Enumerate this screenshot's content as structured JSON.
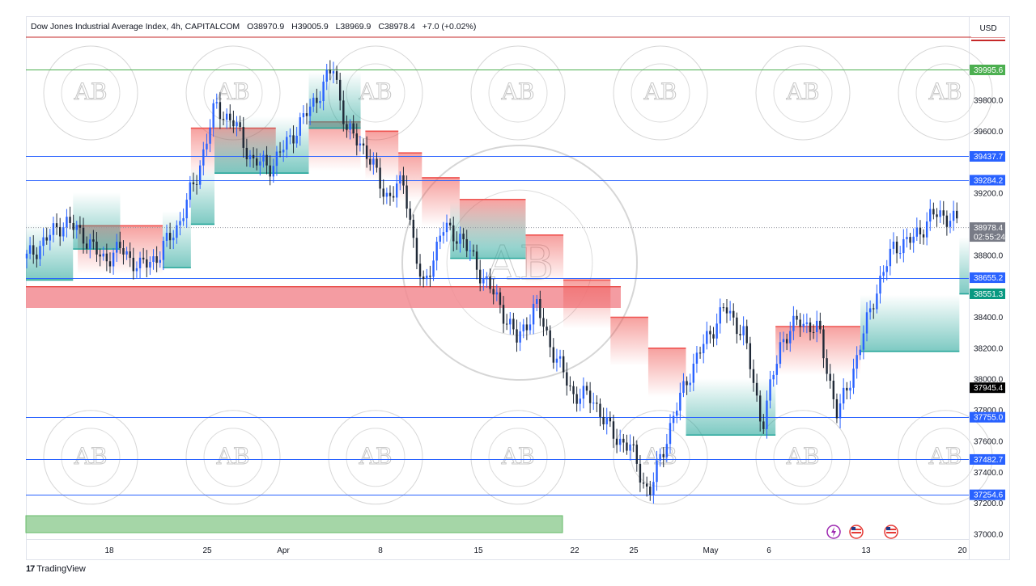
{
  "header": {
    "symbol": "Dow Jones Industrial Average Index, 4h, CAPITALCOM",
    "open": "O38970.9",
    "high": "H39005.9",
    "low": "L38969.9",
    "close": "C38978.4",
    "change": "+7.0 (+0.02%)"
  },
  "currency": "USD",
  "footer_brand": "TradingView",
  "watermark": {
    "text": "AB",
    "ring_text": "ARABIAN BUSINESS ACADEMY"
  },
  "colors": {
    "up": "#2962ff",
    "down": "#1f2937",
    "supertrend_up": "#26a69a",
    "supertrend_down": "#ef5350",
    "resistance_zone": "#f28b92",
    "support_zone": "#a5d6a7",
    "hline_blue": "#2962ff",
    "hline_green": "#4caf50",
    "hline_red": "#c62828"
  },
  "chart_data": {
    "type": "candlestick",
    "title": "Dow Jones Industrial Average Index, 4h, CAPITALCOM",
    "y_axis": {
      "ticks": [
        "39800.0",
        "39600.0",
        "39200.0",
        "38800.0",
        "38400.0",
        "38200.0",
        "38000.0",
        "37800.0",
        "37600.0",
        "37400.0",
        "37200.0",
        "37000.0"
      ],
      "range": [
        36900,
        40150
      ]
    },
    "x_axis": {
      "ticks": [
        "18",
        "25",
        "Apr",
        "8",
        "15",
        "22",
        "25",
        "May",
        "6",
        "13",
        "20"
      ]
    },
    "price_levels": [
      {
        "value": 39995.6,
        "label": "39995.6",
        "color": "#4caf50"
      },
      {
        "value": 39437.7,
        "label": "39437.7",
        "color": "#2962ff"
      },
      {
        "value": 39284.2,
        "label": "39284.2",
        "color": "#2962ff"
      },
      {
        "value": 38655.2,
        "label": "38655.2",
        "color": "#2962ff"
      },
      {
        "value": 37755.0,
        "label": "37755.0",
        "color": "#2962ff"
      },
      {
        "value": 37482.7,
        "label": "37482.7",
        "color": "#2962ff"
      },
      {
        "value": 37254.6,
        "label": "37254.6",
        "color": "#2962ff"
      }
    ],
    "price_tags": [
      {
        "value": 38978.4,
        "label": "38978.4",
        "sub": "02:55:24",
        "color": "#787b86"
      },
      {
        "value": 38551.3,
        "label": "38551.3",
        "color": "#089981"
      },
      {
        "value": 37945.4,
        "label": "37945.4",
        "color": "#000000"
      }
    ],
    "zones": [
      {
        "name": "resistance-zone",
        "from": 38460,
        "to": 38600,
        "x_start": "18-",
        "x_end": "25",
        "color": "#f28b92"
      },
      {
        "name": "support-zone",
        "from": 36910,
        "to": 37010,
        "x_start": "18-",
        "x_end": "22-",
        "color": "#a5d6a7"
      }
    ],
    "supertrend": {
      "down_segments": [
        {
          "from": 0.055,
          "to": 0.145,
          "value": 38990
        },
        {
          "from": 0.175,
          "to": 0.265,
          "value": 39620
        },
        {
          "from": 0.3,
          "to": 0.355,
          "value": 39660
        },
        {
          "from": 0.36,
          "to": 0.395,
          "value": 39600
        },
        {
          "from": 0.395,
          "to": 0.42,
          "value": 39460
        },
        {
          "from": 0.42,
          "to": 0.46,
          "value": 39300
        },
        {
          "from": 0.46,
          "to": 0.53,
          "value": 39160
        },
        {
          "from": 0.53,
          "to": 0.57,
          "value": 38930
        },
        {
          "from": 0.57,
          "to": 0.62,
          "value": 38640
        },
        {
          "from": 0.62,
          "to": 0.66,
          "value": 38400
        },
        {
          "from": 0.66,
          "to": 0.7,
          "value": 38200
        },
        {
          "from": 0.795,
          "to": 0.885,
          "value": 38340
        }
      ],
      "up_segments": [
        {
          "from": 0.0,
          "to": 0.05,
          "value": 38640
        },
        {
          "from": 0.05,
          "to": 0.1,
          "value": 38840
        },
        {
          "from": 0.145,
          "to": 0.175,
          "value": 38720
        },
        {
          "from": 0.175,
          "to": 0.2,
          "value": 39000
        },
        {
          "from": 0.2,
          "to": 0.3,
          "value": 39330
        },
        {
          "from": 0.3,
          "to": 0.355,
          "value": 39620
        },
        {
          "from": 0.45,
          "to": 0.53,
          "value": 38780
        },
        {
          "from": 0.7,
          "to": 0.795,
          "value": 37640
        },
        {
          "from": 0.885,
          "to": 0.99,
          "value": 38180
        },
        {
          "from": 0.99,
          "to": 1.0,
          "value": 38551
        }
      ]
    }
  }
}
